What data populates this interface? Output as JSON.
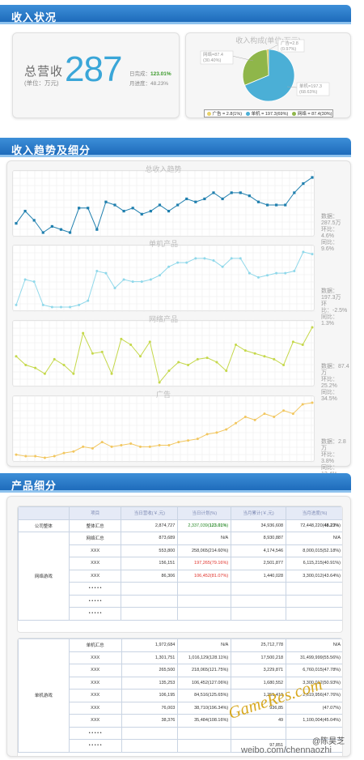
{
  "sections": {
    "income_status": "收入状况",
    "trend": "收入趋势及细分",
    "product": "产品细分"
  },
  "summary": {
    "label": "总营收",
    "unit": "(单位：万元)",
    "total": "287",
    "daily_label": "日完成：",
    "daily_value": "123.01%",
    "monthly_label": "月进度：",
    "monthly_value": "48.23%"
  },
  "pie": {
    "title": "收入构成(单位:万元)",
    "callouts": {
      "ad": [
        "广告=2.8",
        "(0.97%)"
      ],
      "online": [
        "网络=87.4",
        "(30.40%)"
      ],
      "single": [
        "单机=197.3",
        "(68.63%)"
      ]
    },
    "legend": [
      "广告 = 2.8(1%)",
      "单机 = 197.3(69%)",
      "网络 = 87.4(30%)"
    ]
  },
  "charts": [
    {
      "title": "总收入趋势",
      "color": "#1f7fae",
      "stats": [
        "数据：287.5万",
        "环比：4.6%",
        "同比：9.6%"
      ]
    },
    {
      "title": "单机产品",
      "color": "#8fd8ea",
      "stats": [
        "数据：197.3万",
        "环比：-2.5%",
        "同比：1.3%"
      ]
    },
    {
      "title": "网络产品",
      "color": "#c5d84a",
      "stats": [
        "数据：87.4万",
        "环比：25.2%",
        "同比：34.5%"
      ]
    },
    {
      "title": "广告",
      "color": "#f2c760",
      "stats": [
        "数据：2.8万",
        "环比：3.8%",
        "同比：12.4%"
      ]
    }
  ],
  "chart_data": [
    {
      "type": "line",
      "title": "总收入趋势",
      "values": [
        30,
        34,
        31,
        27,
        29,
        28,
        27,
        35,
        35,
        28,
        37,
        36,
        34,
        35,
        33,
        34,
        36,
        34,
        36,
        38,
        37,
        38,
        40,
        38,
        40,
        40,
        39,
        37,
        36,
        36,
        36,
        40,
        43,
        45
      ]
    },
    {
      "type": "line",
      "title": "单机产品",
      "values": [
        20,
        32,
        31,
        20,
        19,
        19,
        19,
        20,
        22,
        36,
        35,
        28,
        32,
        31,
        31,
        32,
        34,
        38,
        40,
        40,
        42,
        42,
        41,
        38,
        42,
        42,
        35,
        33,
        34,
        35,
        35,
        36,
        45,
        44
      ]
    },
    {
      "type": "line",
      "title": "网络产品",
      "values": [
        28,
        22,
        20,
        16,
        26,
        22,
        16,
        44,
        30,
        31,
        16,
        40,
        36,
        28,
        38,
        10,
        18,
        24,
        22,
        26,
        27,
        24,
        18,
        36,
        32,
        30,
        28,
        26,
        22,
        38,
        36,
        48
      ]
    },
    {
      "type": "line",
      "title": "广告",
      "values": [
        12,
        11,
        11,
        10,
        11,
        13,
        14,
        17,
        16,
        20,
        17,
        18,
        19,
        17,
        17,
        18,
        18,
        20,
        21,
        22,
        25,
        26,
        28,
        32,
        36,
        34,
        38,
        36,
        40,
        38,
        44,
        45
      ]
    }
  ],
  "table1": {
    "headers": [
      "项目",
      "当日营收(￥,元)",
      "当日计划(%)",
      "当月累计(￥,元)",
      "当月进度(%)"
    ],
    "company": {
      "group": "公司整体",
      "item": "整体汇总",
      "rev": "2,874,727",
      "plan_a": "2,337,039(",
      "plan_b": "123.01%",
      "plan_c": ")",
      "cum": "34,936,608",
      "prog_a": "72,448,220(",
      "prog_b": "48.23%",
      "prog_c": ")"
    },
    "group": "网络游戏",
    "rows": [
      {
        "item": "网络汇总",
        "rev": "873,689",
        "plan": "N/A",
        "cum": "8,930,887",
        "prog": "N/A",
        "red": false
      },
      {
        "item": "XXX",
        "rev": "553,800",
        "plan": "258,065(214.60%)",
        "cum": "4,174,546",
        "prog": "8,000,015(52.18%)",
        "red": false
      },
      {
        "item": "XXX",
        "rev": "156,151",
        "plan": "197,265(79.16%)",
        "cum": "2,501,877",
        "prog": "6,115,215(40.91%)",
        "red": true
      },
      {
        "item": "XXX",
        "rev": "86,306",
        "plan": "106,452(81.07%)",
        "cum": "1,440,028",
        "prog": "3,300,012(43.64%)",
        "red": true
      },
      {
        "item": "• • • • •",
        "rev": "",
        "plan": "",
        "cum": "",
        "prog": "",
        "red": false
      },
      {
        "item": "• • • • •",
        "rev": "",
        "plan": "",
        "cum": "",
        "prog": "",
        "red": false
      },
      {
        "item": "• • • • •",
        "rev": "",
        "plan": "",
        "cum": "",
        "prog": "",
        "red": false
      }
    ]
  },
  "table2": {
    "group": "单机游戏",
    "rows": [
      {
        "item": "单机汇总",
        "rev": "1,972,684",
        "plan": "N/A",
        "cum": "25,712,778",
        "prog": "N/A"
      },
      {
        "item": "XXX",
        "rev": "1,301,751",
        "plan": "1,016,129(128.11%)",
        "cum": "17,500,218",
        "prog": "31,499,999(55.56%)"
      },
      {
        "item": "XXX",
        "rev": "265,500",
        "plan": "218,065(121.75%)",
        "cum": "3,229,871",
        "prog": "6,760,015(47.78%)"
      },
      {
        "item": "XXX",
        "rev": "135,253",
        "plan": "106,452(127.06%)",
        "cum": "1,680,552",
        "prog": "3,300,012(50.93%)"
      },
      {
        "item": "XXX",
        "rev": "106,195",
        "plan": "84,516(125.65%)",
        "cum": "1,251,419",
        "prog": "2,619,956(47.76%)"
      },
      {
        "item": "XXX",
        "rev": "76,003",
        "plan": "38,710(196.34%)",
        "cum": "936,85",
        "prog": "(47.07%)"
      },
      {
        "item": "XXX",
        "rev": "38,376",
        "plan": "35,484(108.16%)",
        "cum": "49",
        "prog": "1,100,004(45.04%)"
      },
      {
        "item": "• • • • •",
        "rev": "",
        "plan": "",
        "cum": "",
        "prog": ""
      },
      {
        "item": "• • • • •",
        "rev": "",
        "plan": "",
        "cum": "97,851",
        "prog": ""
      }
    ]
  },
  "watermark": {
    "brand": "GameRes.com",
    "weibo_name": "陈昊芝",
    "weibo_url": "weibo.com/chennaozhi"
  }
}
